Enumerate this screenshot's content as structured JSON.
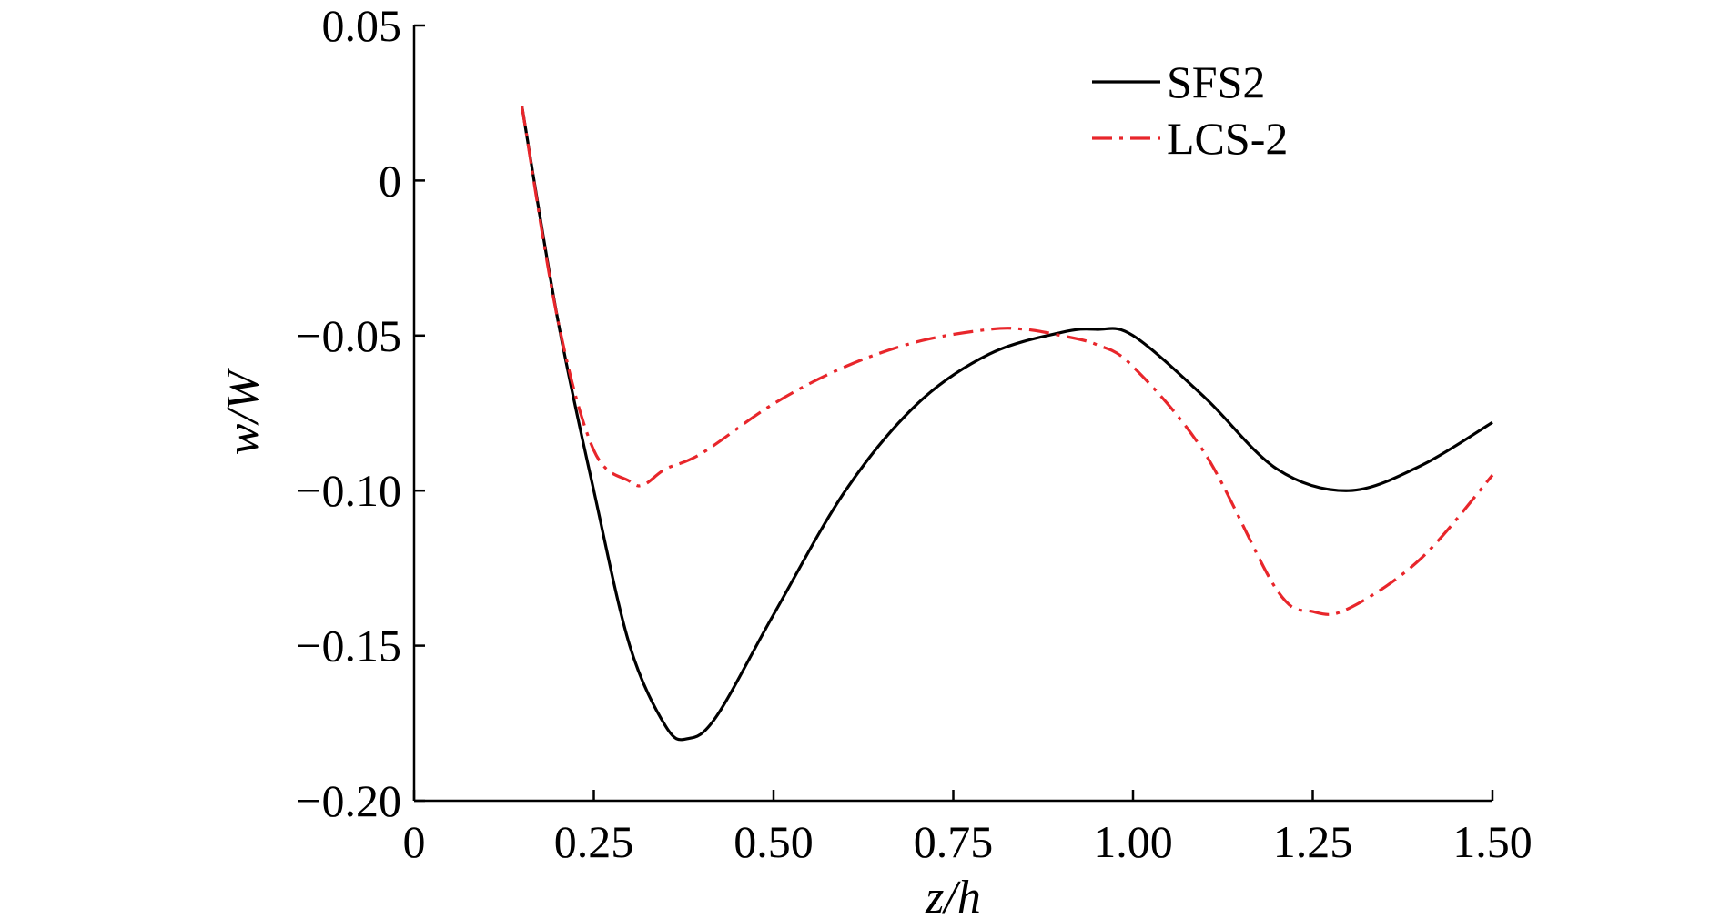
{
  "chart_data": {
    "type": "line",
    "title": "",
    "xlabel": "z/h",
    "ylabel": "w/W",
    "xlim": [
      0,
      1.5
    ],
    "ylim": [
      -0.2,
      0.05
    ],
    "grid": false,
    "legend_position": "top-right",
    "x_ticks": [
      0,
      0.25,
      0.5,
      0.75,
      1.0,
      1.25,
      1.5
    ],
    "x_tick_labels": [
      "0",
      "0.25",
      "0.50",
      "0.75",
      "1.00",
      "1.25",
      "1.50"
    ],
    "y_ticks": [
      0.05,
      0,
      -0.05,
      -0.1,
      -0.15,
      -0.2
    ],
    "y_tick_labels": [
      "0.05",
      "0",
      "−0.05",
      "−0.10",
      "−0.15",
      "−0.20"
    ],
    "series": [
      {
        "name": "SFS2",
        "color": "#000000",
        "style": "solid",
        "x": [
          0.15,
          0.2,
          0.25,
          0.3,
          0.35,
          0.38,
          0.42,
          0.5,
          0.6,
          0.7,
          0.8,
          0.9,
          0.95,
          1.0,
          1.1,
          1.2,
          1.3,
          1.4,
          1.5
        ],
        "y": [
          0.024,
          -0.045,
          -0.1,
          -0.15,
          -0.176,
          -0.18,
          -0.173,
          -0.14,
          -0.1,
          -0.072,
          -0.056,
          -0.049,
          -0.048,
          -0.05,
          -0.07,
          -0.093,
          -0.1,
          -0.092,
          -0.078
        ]
      },
      {
        "name": "LCS-2",
        "color": "#e8262b",
        "style": "dashdot",
        "x": [
          0.15,
          0.2,
          0.25,
          0.3,
          0.32,
          0.35,
          0.4,
          0.5,
          0.6,
          0.7,
          0.8,
          0.85,
          0.9,
          0.95,
          1.0,
          1.1,
          1.2,
          1.25,
          1.3,
          1.4,
          1.5
        ],
        "y": [
          0.024,
          -0.045,
          -0.087,
          -0.097,
          -0.098,
          -0.093,
          -0.088,
          -0.072,
          -0.06,
          -0.052,
          -0.048,
          -0.048,
          -0.05,
          -0.053,
          -0.06,
          -0.088,
          -0.132,
          -0.139,
          -0.138,
          -0.122,
          -0.095
        ]
      }
    ]
  }
}
